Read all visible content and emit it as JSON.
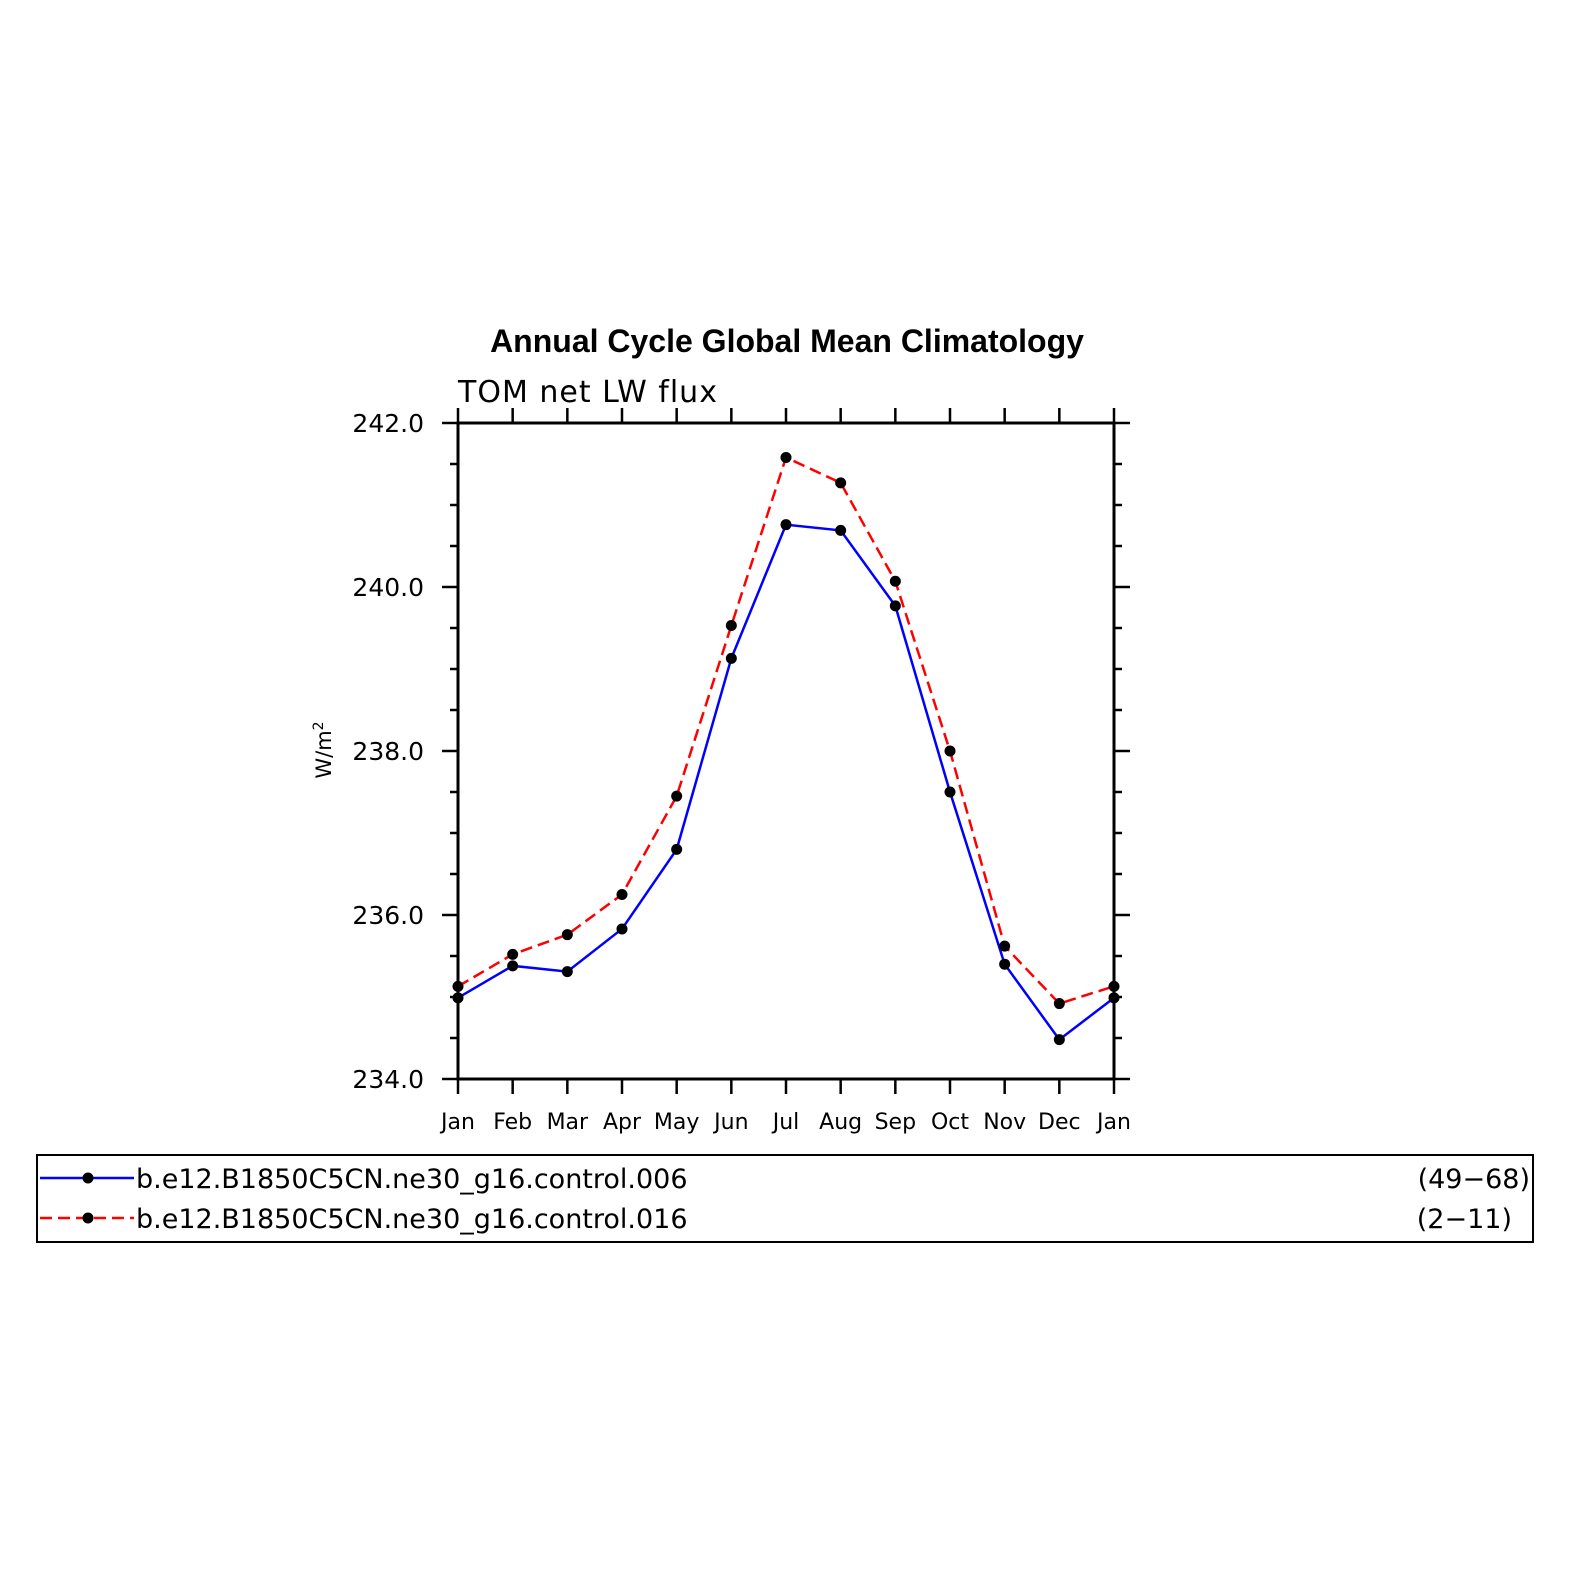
{
  "chart_data": {
    "type": "line",
    "title": "Annual Cycle Global Mean Climatology",
    "subtitle": "TOM net LW flux",
    "ylabel": "W/m",
    "ylabel_superscript": "2",
    "ylim": [
      234.0,
      242.0
    ],
    "yticks": [
      "234.0",
      "236.0",
      "238.0",
      "240.0",
      "242.0"
    ],
    "categories": [
      "Jan",
      "Feb",
      "Mar",
      "Apr",
      "May",
      "Jun",
      "Jul",
      "Aug",
      "Sep",
      "Oct",
      "Nov",
      "Dec",
      "Jan"
    ],
    "grid": false,
    "legend_position": "bottom",
    "series": [
      {
        "name": "b.e12.B1850C5CN.ne30_g16.control.006",
        "years": "(49−68)",
        "color": "#0000ff",
        "dash": "solid",
        "values": [
          234.99,
          235.38,
          235.31,
          235.83,
          236.8,
          239.13,
          240.76,
          240.69,
          239.77,
          237.5,
          235.4,
          234.48,
          234.99
        ]
      },
      {
        "name": "b.e12.B1850C5CN.ne30_g16.control.016",
        "years": "(2−11)",
        "color": "#ff0000",
        "dash": "dashed",
        "values": [
          235.13,
          235.52,
          235.76,
          236.25,
          237.45,
          239.53,
          241.58,
          241.27,
          240.07,
          238.0,
          235.62,
          234.92,
          235.13
        ]
      }
    ]
  }
}
